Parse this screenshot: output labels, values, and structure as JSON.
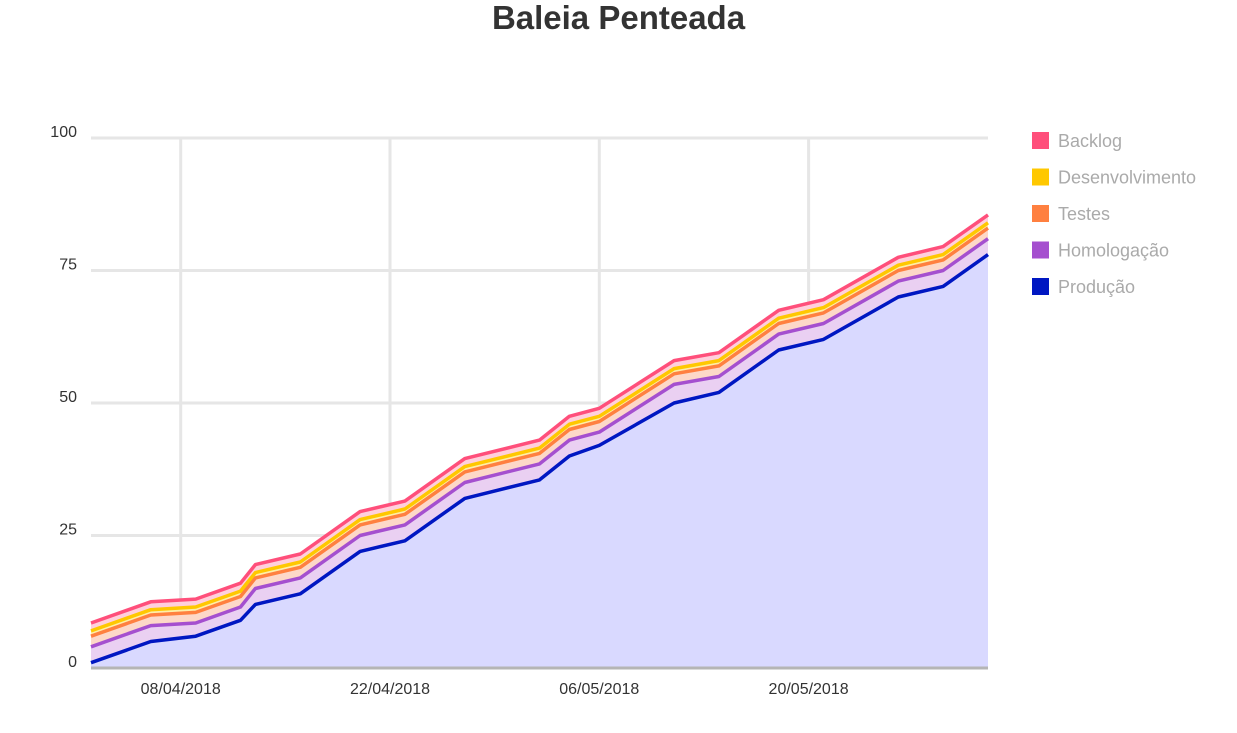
{
  "chart_data": {
    "type": "area",
    "stacked": true,
    "title": "Baleia Penteada",
    "xlabel": "",
    "ylabel": "",
    "ylim": [
      0,
      100
    ],
    "yticks": [
      0,
      25,
      50,
      75,
      100
    ],
    "xtick_labels": [
      "08/04/2018",
      "22/04/2018",
      "06/05/2018",
      "20/05/2018"
    ],
    "xtick_dates": [
      "2018-04-08",
      "2018-04-22",
      "2018-05-06",
      "2018-05-20"
    ],
    "x": [
      "2018-04-02",
      "2018-04-06",
      "2018-04-09",
      "2018-04-12",
      "2018-04-13",
      "2018-04-16",
      "2018-04-20",
      "2018-04-23",
      "2018-04-27",
      "2018-05-02",
      "2018-05-04",
      "2018-05-06",
      "2018-05-11",
      "2018-05-14",
      "2018-05-18",
      "2018-05-21",
      "2018-05-26",
      "2018-05-29",
      "2018-06-01"
    ],
    "series": [
      {
        "name": "Produção",
        "color": "#0017c2",
        "fill": "#d9d9ff",
        "values": [
          1,
          5,
          6,
          9,
          12,
          14,
          22,
          24,
          32,
          35.5,
          40,
          42,
          50,
          52,
          60,
          62,
          70,
          72,
          78
        ]
      },
      {
        "name": "Homologação",
        "color": "#a54fcf",
        "fill": "#ead0f2",
        "values": [
          3,
          3,
          2.5,
          2.5,
          3,
          3,
          3,
          3,
          3,
          3,
          3,
          2.5,
          3.5,
          3,
          3,
          3,
          3,
          3,
          3
        ]
      },
      {
        "name": "Testes",
        "color": "#ff8040",
        "fill": "#fdd8c8",
        "values": [
          2,
          2,
          2,
          2,
          2,
          2,
          2,
          2,
          2,
          2,
          2,
          2,
          2,
          2,
          2,
          2,
          2,
          2,
          2
        ]
      },
      {
        "name": "Desenvolvimento",
        "color": "#ffc800",
        "fill": "#ffeea8",
        "values": [
          1,
          1,
          1,
          1,
          1,
          1,
          1,
          1,
          1,
          1,
          1,
          1,
          1,
          1,
          1,
          1,
          1,
          1,
          1
        ]
      },
      {
        "name": "Backlog",
        "color": "#ff4f7b",
        "fill": "#ffd0dc",
        "values": [
          1.5,
          1.5,
          1.5,
          1.5,
          1.5,
          1.5,
          1.5,
          1.5,
          1.5,
          1.5,
          1.5,
          1.5,
          1.5,
          1.5,
          1.5,
          1.5,
          1.5,
          1.5,
          1.5
        ]
      }
    ],
    "legend": {
      "position": "right",
      "order": [
        "Backlog",
        "Desenvolvimento",
        "Testes",
        "Homologação",
        "Produção"
      ]
    },
    "grid": true
  }
}
